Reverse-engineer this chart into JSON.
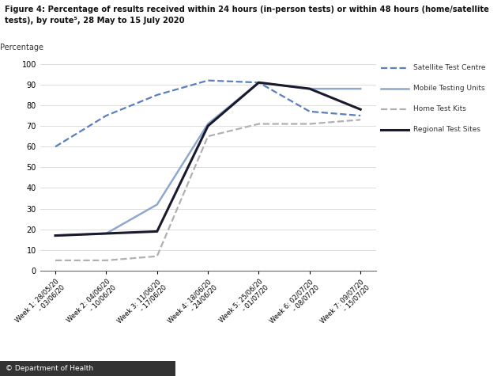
{
  "title_line1": "Figure 4: Percentage of results received within 24 hours (in-person tests) or within 48 hours (home/satellite",
  "title_line2": "tests), by route⁵, 28 May to 15 July 2020",
  "ylabel": "Percentage",
  "x_labels": [
    "Week 1: 28/05/20\n- 03/06/20",
    "Week 2: 04/06/20\n- 10/06/20",
    "Week 3: 11/06/20\n- 17/06/20",
    "Week 4: 18/06/20\n- 24/06/20",
    "Week 5: 25/06/20\n- 01/07/20",
    "Week 6: 02/07/20\n- 08/07/20",
    "Week 7: 09/07/20\n- 15/07/20"
  ],
  "series": {
    "Satellite Test Centre": {
      "values": [
        60,
        75,
        85,
        92,
        91,
        77,
        75
      ],
      "color": "#5b7fbb",
      "linestyle": "dashed",
      "linewidth": 1.6
    },
    "Mobile Testing Units": {
      "values": [
        17,
        18,
        32,
        71,
        91,
        88,
        88
      ],
      "color": "#8fa8cc",
      "linestyle": "solid",
      "linewidth": 1.8
    },
    "Home Test Kits": {
      "values": [
        5,
        5,
        7,
        65,
        71,
        71,
        73
      ],
      "color": "#b0b0b0",
      "linestyle": "dashed",
      "linewidth": 1.6
    },
    "Regional Test Sites": {
      "values": [
        17,
        18,
        19,
        70,
        91,
        88,
        78
      ],
      "color": "#1a1a2e",
      "linestyle": "solid",
      "linewidth": 2.2
    }
  },
  "ylim": [
    0,
    100
  ],
  "yticks": [
    0,
    10,
    20,
    30,
    40,
    50,
    60,
    70,
    80,
    90,
    100
  ],
  "legend_order": [
    "Satellite Test Centre",
    "Mobile Testing Units",
    "Home Test Kits",
    "Regional Test Sites"
  ],
  "footnote": "© Department of Health",
  "background_color": "#ffffff"
}
